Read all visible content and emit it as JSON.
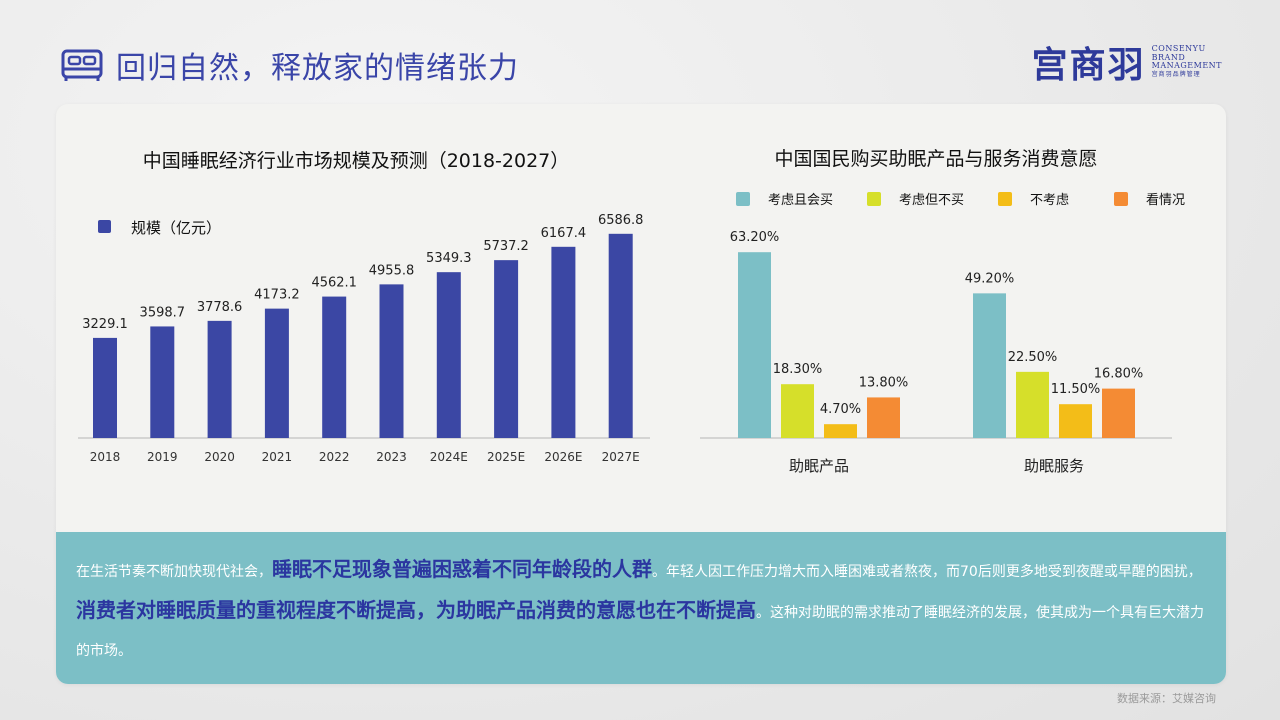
{
  "header": {
    "title": "回归自然，释放家的情绪张力",
    "icon": "bed-icon"
  },
  "logo": {
    "cn": "宫商羽",
    "en_lines": [
      "CONSENYU",
      "BRAND",
      "MANAGEMENT"
    ],
    "en_sub": "宫商羽品牌管理"
  },
  "colors": {
    "title_blue": "#3a45a8",
    "bar_blue": "#3b47a4",
    "teal": "#7cbfc6",
    "lime": "#d6df2a",
    "yellow": "#f3bd18",
    "orange": "#f48b34",
    "highlight": "#2b36a0"
  },
  "chart_data": [
    {
      "type": "bar",
      "title": "中国睡眠经济行业市场规模及预测（2018-2027）",
      "categories": [
        "2018",
        "2019",
        "2020",
        "2021",
        "2022",
        "2023",
        "2024E",
        "2025E",
        "2026E",
        "2027E"
      ],
      "series": [
        {
          "name": "规模（亿元）",
          "values": [
            3229.1,
            3598.7,
            3778.6,
            4173.2,
            4562.1,
            4955.8,
            5349.3,
            5737.2,
            6167.4,
            6586.8
          ]
        }
      ],
      "value_labels": [
        "3229.1",
        "3598.7",
        "3778.6",
        "4173.2",
        "4562.1",
        "4955.8",
        "5349.3",
        "5737.2",
        "6167.4",
        "6586.8"
      ],
      "legend": "top-left",
      "grid": false
    },
    {
      "type": "bar",
      "title": "中国国民购买助眠产品与服务消费意愿",
      "categories": [
        "助眠产品",
        "助眠服务"
      ],
      "series": [
        {
          "name": "考虑且会买",
          "values": [
            63.2,
            49.2
          ],
          "labels": [
            "63.20%",
            "49.20%"
          ]
        },
        {
          "name": "考虑但不买",
          "values": [
            18.3,
            22.5
          ],
          "labels": [
            "18.30%",
            "22.50%"
          ]
        },
        {
          "name": "不考虑",
          "values": [
            4.7,
            11.5
          ],
          "labels": [
            "4.70%",
            "11.50%"
          ]
        },
        {
          "name": "看情况",
          "values": [
            13.8,
            16.8
          ],
          "labels": [
            "13.80%",
            "16.80%"
          ]
        }
      ],
      "legend": "top",
      "grid": false
    }
  ],
  "summary": {
    "p1": "在生活节奏不断加快现代社会，",
    "h1": "睡眠不足现象普遍困惑着不同年龄段的人群",
    "p2": "。年轻人因工作压力增大而入睡困难或者熬夜，而70后则更多地受到夜醒或早醒的困扰，",
    "h2": "消费者对睡眠质量的重视程度不断提高，为助眠产品消费的意愿也在不断提高",
    "p3": "。这种对助眠的需求推动了睡眠经济的发展，使其成为一个具有巨大潜力的市场。"
  },
  "source": "数据来源：艾媒咨询"
}
